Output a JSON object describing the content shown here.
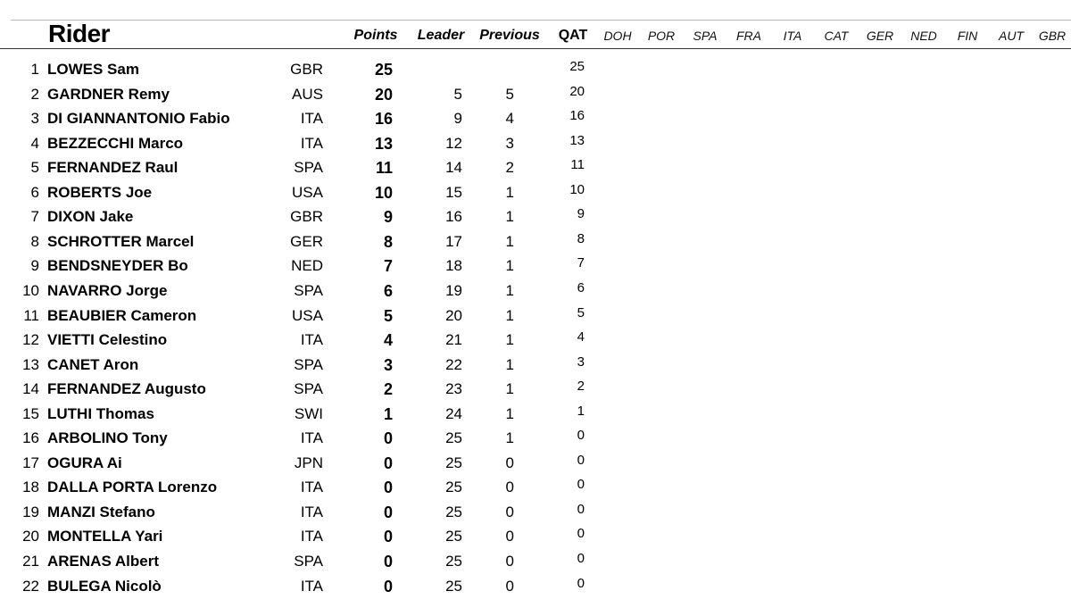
{
  "header": {
    "rider": "Rider",
    "points": "Points",
    "leader": "Leader",
    "previous": "Previous",
    "qat": "QAT",
    "rounds": [
      "DOH",
      "POR",
      "SPA",
      "FRA",
      "ITA",
      "CAT",
      "GER",
      "NED",
      "FIN",
      "AUT",
      "GBR"
    ]
  },
  "rows": [
    {
      "pos": "1",
      "name": "LOWES Sam",
      "nat": "GBR",
      "points": "25",
      "leader": "",
      "previous": "",
      "qat": "25"
    },
    {
      "pos": "2",
      "name": "GARDNER Remy",
      "nat": "AUS",
      "points": "20",
      "leader": "5",
      "previous": "5",
      "qat": "20"
    },
    {
      "pos": "3",
      "name": "DI GIANNANTONIO Fabio",
      "nat": "ITA",
      "points": "16",
      "leader": "9",
      "previous": "4",
      "qat": "16"
    },
    {
      "pos": "4",
      "name": "BEZZECCHI Marco",
      "nat": "ITA",
      "points": "13",
      "leader": "12",
      "previous": "3",
      "qat": "13"
    },
    {
      "pos": "5",
      "name": "FERNANDEZ Raul",
      "nat": "SPA",
      "points": "11",
      "leader": "14",
      "previous": "2",
      "qat": "11"
    },
    {
      "pos": "6",
      "name": "ROBERTS Joe",
      "nat": "USA",
      "points": "10",
      "leader": "15",
      "previous": "1",
      "qat": "10"
    },
    {
      "pos": "7",
      "name": "DIXON Jake",
      "nat": "GBR",
      "points": "9",
      "leader": "16",
      "previous": "1",
      "qat": "9"
    },
    {
      "pos": "8",
      "name": "SCHROTTER Marcel",
      "nat": "GER",
      "points": "8",
      "leader": "17",
      "previous": "1",
      "qat": "8"
    },
    {
      "pos": "9",
      "name": "BENDSNEYDER Bo",
      "nat": "NED",
      "points": "7",
      "leader": "18",
      "previous": "1",
      "qat": "7"
    },
    {
      "pos": "10",
      "name": "NAVARRO Jorge",
      "nat": "SPA",
      "points": "6",
      "leader": "19",
      "previous": "1",
      "qat": "6"
    },
    {
      "pos": "11",
      "name": "BEAUBIER Cameron",
      "nat": "USA",
      "points": "5",
      "leader": "20",
      "previous": "1",
      "qat": "5"
    },
    {
      "pos": "12",
      "name": "VIETTI Celestino",
      "nat": "ITA",
      "points": "4",
      "leader": "21",
      "previous": "1",
      "qat": "4"
    },
    {
      "pos": "13",
      "name": "CANET Aron",
      "nat": "SPA",
      "points": "3",
      "leader": "22",
      "previous": "1",
      "qat": "3"
    },
    {
      "pos": "14",
      "name": "FERNANDEZ Augusto",
      "nat": "SPA",
      "points": "2",
      "leader": "23",
      "previous": "1",
      "qat": "2"
    },
    {
      "pos": "15",
      "name": "LUTHI Thomas",
      "nat": "SWI",
      "points": "1",
      "leader": "24",
      "previous": "1",
      "qat": "1"
    },
    {
      "pos": "16",
      "name": "ARBOLINO Tony",
      "nat": "ITA",
      "points": "0",
      "leader": "25",
      "previous": "1",
      "qat": "0"
    },
    {
      "pos": "17",
      "name": "OGURA Ai",
      "nat": "JPN",
      "points": "0",
      "leader": "25",
      "previous": "0",
      "qat": "0"
    },
    {
      "pos": "18",
      "name": "DALLA PORTA Lorenzo",
      "nat": "ITA",
      "points": "0",
      "leader": "25",
      "previous": "0",
      "qat": "0"
    },
    {
      "pos": "19",
      "name": "MANZI Stefano",
      "nat": "ITA",
      "points": "0",
      "leader": "25",
      "previous": "0",
      "qat": "0"
    },
    {
      "pos": "20",
      "name": "MONTELLA Yari",
      "nat": "ITA",
      "points": "0",
      "leader": "25",
      "previous": "0",
      "qat": "0"
    },
    {
      "pos": "21",
      "name": "ARENAS Albert",
      "nat": "SPA",
      "points": "0",
      "leader": "25",
      "previous": "0",
      "qat": "0"
    },
    {
      "pos": "22",
      "name": "BULEGA Nicolò",
      "nat": "ITA",
      "points": "0",
      "leader": "25",
      "previous": "0",
      "qat": "0"
    }
  ]
}
